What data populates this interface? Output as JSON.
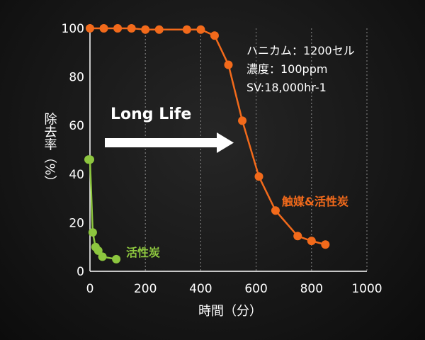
{
  "chart_data": {
    "type": "line",
    "title": "",
    "xlabel": "時間（分）",
    "ylabel": "除去率（%）",
    "xlim": [
      0,
      1000
    ],
    "ylim": [
      0,
      100
    ],
    "xticks": [
      0,
      200,
      400,
      600,
      800,
      1000
    ],
    "yticks": [
      0,
      20,
      40,
      60,
      80,
      100
    ],
    "grid": "vertical-dashed",
    "series": [
      {
        "name": "触媒&活性炭",
        "color": "#f26a1b",
        "x": [
          0,
          50,
          100,
          150,
          200,
          250,
          350,
          400,
          450,
          500,
          550,
          610,
          670,
          750,
          800,
          850
        ],
        "y": [
          100,
          100,
          100,
          100,
          99.5,
          99.5,
          99.5,
          99.5,
          97,
          85,
          62,
          39,
          25,
          14.5,
          12.5,
          11
        ]
      },
      {
        "name": "活性炭",
        "color": "#8dc63f",
        "x": [
          -5,
          0,
          10,
          20,
          30,
          45,
          95
        ],
        "y": [
          46,
          46,
          16,
          10,
          8.5,
          6,
          5
        ]
      }
    ],
    "conditions": [
      "ハニカム：1200セル",
      "濃度：100ppm",
      "SV:18,000hr-1"
    ],
    "annotation": "Long Life"
  }
}
